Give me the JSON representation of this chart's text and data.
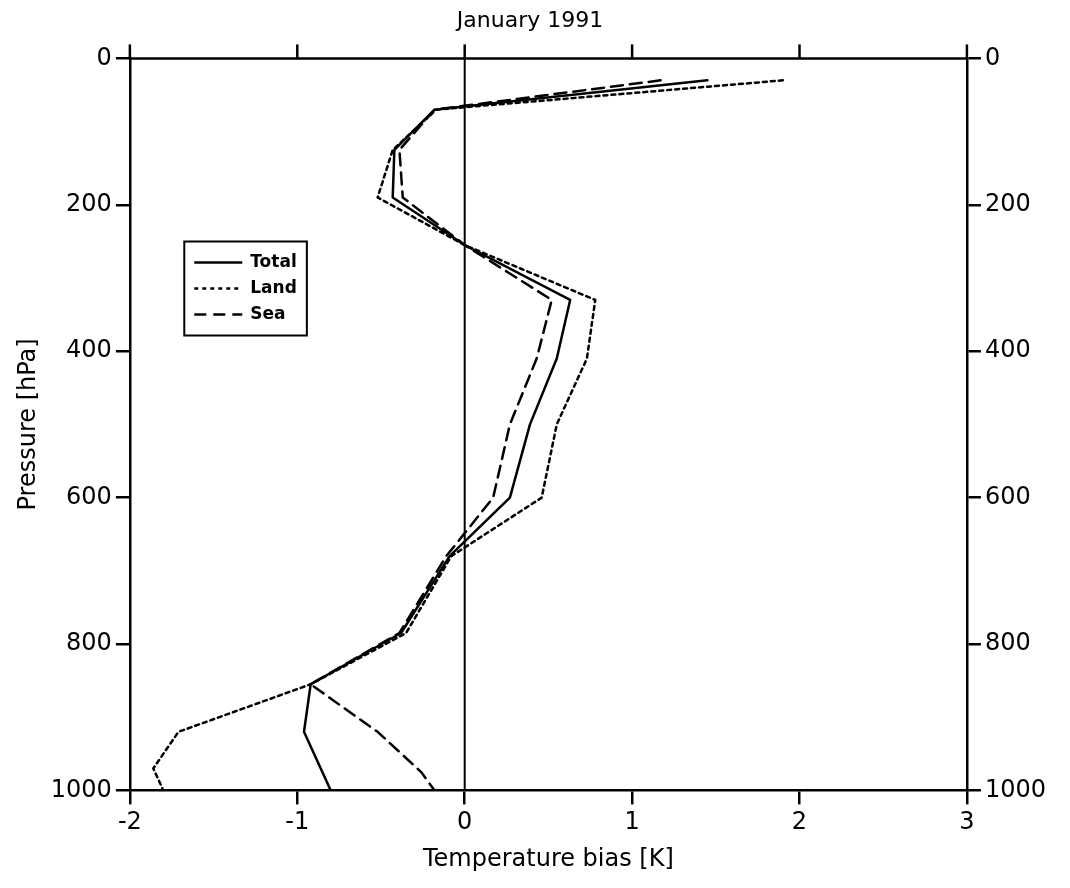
{
  "chart_data": {
    "type": "line",
    "title": "January 1991",
    "xlabel": "Temperature bias [K]",
    "ylabel": "Pressure [hPa]",
    "xlim": [
      -2,
      3
    ],
    "xticks": [
      -2,
      -1,
      0,
      1,
      2,
      3
    ],
    "ylim": [
      1000,
      0
    ],
    "yticks": [
      0,
      200,
      400,
      600,
      800,
      1000
    ],
    "y2lim": [
      1000,
      0
    ],
    "y2ticks": [
      0,
      200,
      400,
      600,
      800,
      1000
    ],
    "grid": false,
    "legend": "top left",
    "marker": "none",
    "ref_lines": [
      {
        "axis": "x",
        "value": 0,
        "color": "#000000",
        "line_style": "solid"
      }
    ],
    "series": [
      {
        "name": "Total",
        "color": "#000000",
        "line_style": "solid",
        "x": [
          1.45,
          -0.18,
          -0.42,
          -0.43,
          0,
          0.63,
          0.55,
          0.39,
          0.27,
          -0.09,
          -0.38,
          -0.92,
          -0.96,
          -0.8
        ],
        "values": [
          30,
          70,
          125,
          190,
          255,
          330,
          410,
          500,
          600,
          680,
          785,
          855,
          920,
          1000
        ]
      },
      {
        "name": "Land",
        "color": "#000000",
        "line_style": "dotted",
        "x": [
          1.9,
          -0.17,
          -0.43,
          -0.52,
          0,
          0.78,
          0.73,
          0.55,
          0.46,
          -0.08,
          -0.35,
          -0.92,
          -1.71,
          -1.86,
          -1.8
        ],
        "values": [
          30,
          70,
          125,
          190,
          255,
          330,
          410,
          500,
          600,
          680,
          785,
          855,
          920,
          970,
          1000
        ]
      },
      {
        "name": "Sea",
        "color": "#000000",
        "line_style": "dashed",
        "x": [
          1.17,
          -0.18,
          -0.39,
          -0.37,
          0,
          0.52,
          0.43,
          0.27,
          0.17,
          -0.11,
          -0.39,
          -0.92,
          -0.52,
          -0.26,
          -0.18
        ],
        "values": [
          30,
          70,
          125,
          190,
          255,
          330,
          410,
          500,
          600,
          680,
          785,
          855,
          920,
          975,
          1000
        ]
      }
    ]
  }
}
